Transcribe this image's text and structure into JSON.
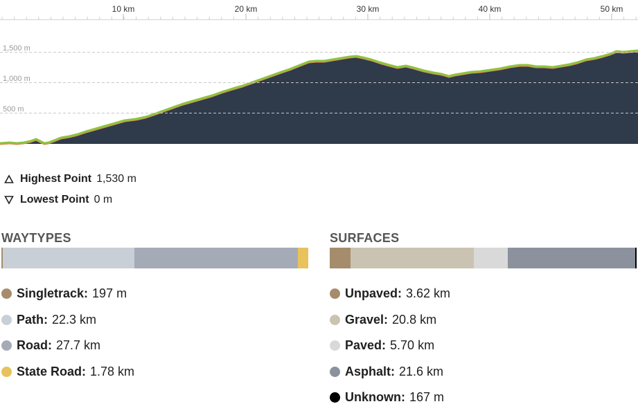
{
  "elevation_profile": {
    "distance_ticks": [
      "10 km",
      "20 km",
      "30 km",
      "40 km",
      "50 km"
    ],
    "elevation_ticks": [
      "1,500 m",
      "1,000 m",
      "500 m"
    ],
    "fill_color": "#2f3a4a",
    "line_color": "#8dc33f"
  },
  "stats": {
    "highest_label": "Highest Point",
    "highest_value": "1,530 m",
    "lowest_label": "Lowest Point",
    "lowest_value": "0 m"
  },
  "waytypes": {
    "title": "WAYTYPES",
    "items": [
      {
        "name": "Singletrack:",
        "value": "197 m",
        "color": "#a58c6c"
      },
      {
        "name": "Path:",
        "value": "22.3 km",
        "color": "#c9cfd7"
      },
      {
        "name": "Road:",
        "value": "27.7 km",
        "color": "#a5abb6"
      },
      {
        "name": "State Road:",
        "value": "1.78 km",
        "color": "#e8c25c"
      }
    ]
  },
  "surfaces": {
    "title": "SURFACES",
    "items": [
      {
        "name": "Unpaved:",
        "value": "3.62 km",
        "color": "#a58c6c"
      },
      {
        "name": "Gravel:",
        "value": "20.8 km",
        "color": "#cbc3b2"
      },
      {
        "name": "Paved:",
        "value": "5.70 km",
        "color": "#d9d9d9"
      },
      {
        "name": "Asphalt:",
        "value": "21.6 km",
        "color": "#8c929d"
      },
      {
        "name": "Unknown:",
        "value": "167 m",
        "color": "#000000"
      }
    ]
  }
}
